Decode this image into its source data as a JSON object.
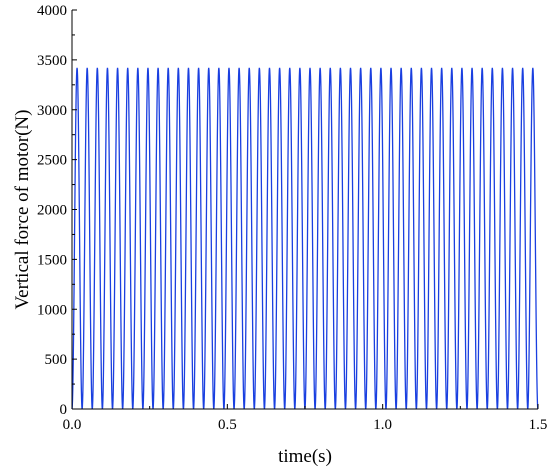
{
  "chart_data": {
    "type": "line",
    "title": "",
    "xlabel": "time(s)",
    "ylabel": "Vertical force of motor(N)",
    "xlim": [
      0.0,
      1.5
    ],
    "ylim": [
      0,
      4000
    ],
    "x_ticks": [
      0.0,
      0.5,
      1.0,
      1.5
    ],
    "x_tick_labels": [
      "0.0",
      "0.5",
      "1.0",
      "1.5"
    ],
    "y_ticks": [
      0,
      500,
      1000,
      1500,
      2000,
      2500,
      3000,
      3500,
      4000
    ],
    "y_tick_labels": [
      "0",
      "500",
      "1000",
      "1500",
      "2000",
      "2500",
      "3000",
      "3500",
      "4000"
    ],
    "grid": false,
    "legend": "none",
    "series": [
      {
        "color": "#1a3fe0",
        "waveform": "periodic",
        "period": 0.0326,
        "cycles": 46,
        "min": 0,
        "max": 3420
      }
    ]
  }
}
